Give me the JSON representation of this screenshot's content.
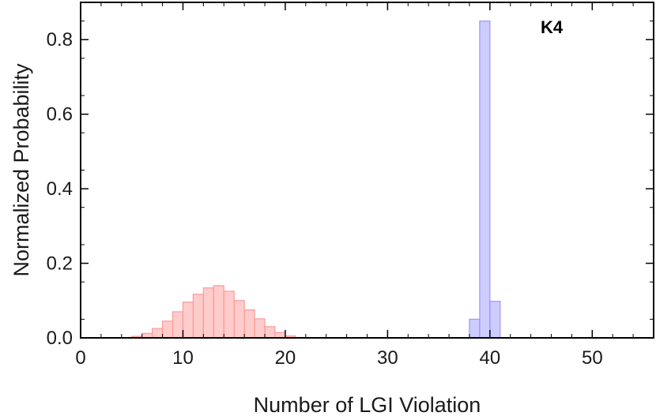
{
  "chart_data": {
    "type": "histogram",
    "title": "",
    "xlabel": "Number of LGI Violation",
    "ylabel": "Normalized Probability",
    "xlim": [
      0,
      56
    ],
    "ylim": [
      0,
      0.9
    ],
    "x_ticks": [
      0,
      10,
      20,
      30,
      40,
      50
    ],
    "y_ticks": [
      0.0,
      0.2,
      0.4,
      0.6,
      0.8
    ],
    "x_tick_labels": [
      "0",
      "10",
      "20",
      "30",
      "40",
      "50"
    ],
    "y_tick_labels": [
      "0.0",
      "0.2",
      "0.4",
      "0.6",
      "0.8"
    ],
    "grid": false,
    "bin_width": 1,
    "annotation": "K4",
    "series": [
      {
        "color": "#ff9999",
        "bins": [
          {
            "x0": 3,
            "y": 0.0
          },
          {
            "x0": 4,
            "y": 0.001
          },
          {
            "x0": 5,
            "y": 0.004
          },
          {
            "x0": 6,
            "y": 0.012
          },
          {
            "x0": 7,
            "y": 0.025
          },
          {
            "x0": 8,
            "y": 0.045
          },
          {
            "x0": 9,
            "y": 0.07
          },
          {
            "x0": 10,
            "y": 0.096
          },
          {
            "x0": 11,
            "y": 0.117
          },
          {
            "x0": 12,
            "y": 0.134
          },
          {
            "x0": 13,
            "y": 0.14
          },
          {
            "x0": 14,
            "y": 0.125
          },
          {
            "x0": 15,
            "y": 0.1
          },
          {
            "x0": 16,
            "y": 0.075
          },
          {
            "x0": 17,
            "y": 0.051
          },
          {
            "x0": 18,
            "y": 0.03
          },
          {
            "x0": 19,
            "y": 0.014
          },
          {
            "x0": 20,
            "y": 0.005
          },
          {
            "x0": 21,
            "y": 0.001
          },
          {
            "x0": 22,
            "y": 0.0
          }
        ]
      },
      {
        "color": "#9999ff",
        "bins": [
          {
            "x0": 38,
            "y": 0.05
          },
          {
            "x0": 39,
            "y": 0.85
          },
          {
            "x0": 40,
            "y": 0.098
          }
        ]
      }
    ]
  }
}
